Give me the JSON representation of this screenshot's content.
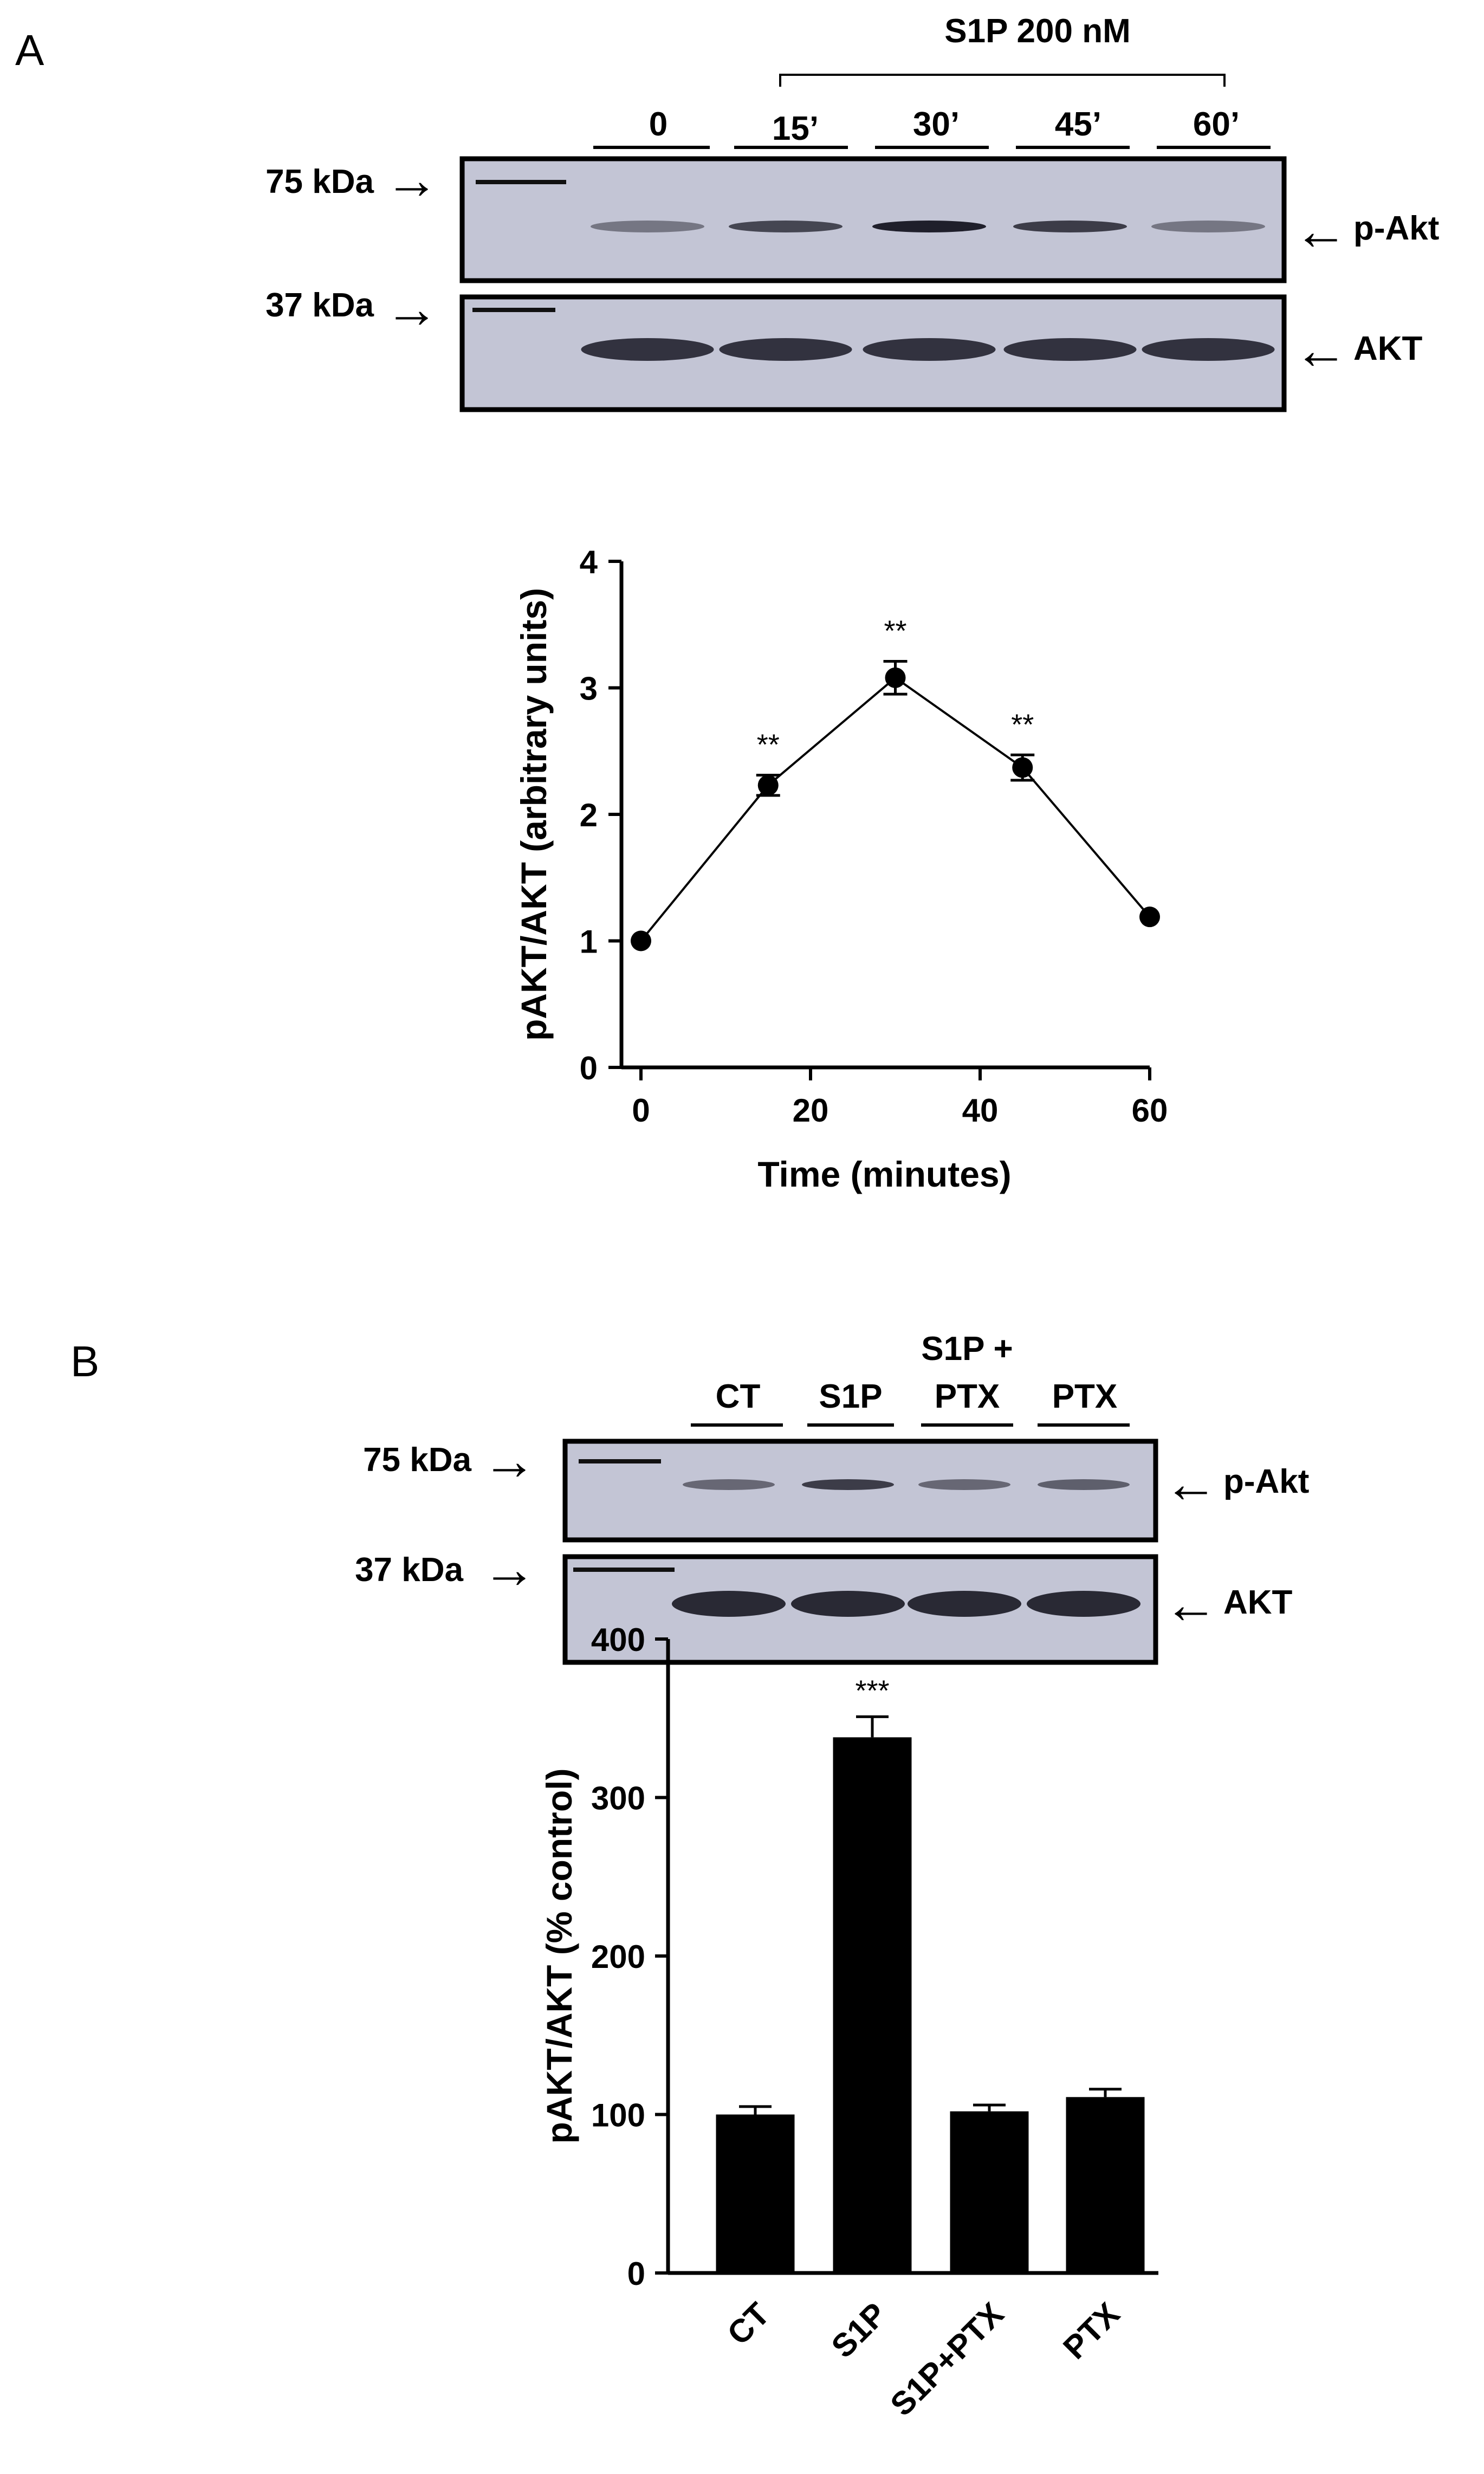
{
  "panel_a": {
    "label": "A",
    "treatment_label": "S1P 200 nM",
    "lanes": [
      "0",
      "15’",
      "30’",
      "45’",
      "60’"
    ],
    "band_intensity_pakt": [
      0.45,
      0.75,
      0.95,
      0.8,
      0.45
    ],
    "band_intensity_akt": [
      0.85,
      0.85,
      0.85,
      0.85,
      0.85
    ],
    "marker_upper": "75 kDa",
    "marker_lower": "37 kDa",
    "blot_upper_label": "p-Akt",
    "blot_lower_label": "AKT"
  },
  "panel_b": {
    "label": "B",
    "lanes": [
      "CT",
      "S1P",
      "S1P +",
      "PTX",
      "PTX"
    ],
    "band_intensity_pakt": [
      0.55,
      0.8,
      0.55,
      0.6
    ],
    "band_intensity_akt": [
      0.9,
      0.9,
      0.9,
      0.9
    ],
    "marker_upper": "75 kDa",
    "marker_lower": "37 kDa",
    "blot_upper_label": "p-Akt",
    "blot_lower_label": "AKT"
  },
  "arrow_glyph": "→",
  "arrow_glyph_left": "←",
  "chart_data": [
    {
      "type": "line",
      "title": "",
      "xlabel": "Time (minutes)",
      "ylabel": "pAKT/AKT (arbitrary units)",
      "x": [
        0,
        15,
        30,
        45,
        60
      ],
      "y": [
        1.0,
        2.23,
        3.08,
        2.37,
        1.19
      ],
      "error": [
        0.02,
        0.08,
        0.13,
        0.1,
        0.03
      ],
      "annotations": [
        "",
        "**",
        "**",
        "**",
        ""
      ],
      "xlim": [
        0,
        60
      ],
      "ylim": [
        0,
        4
      ],
      "xticks": [
        0,
        20,
        40,
        60
      ],
      "yticks": [
        0,
        1,
        2,
        3,
        4
      ]
    },
    {
      "type": "bar",
      "title": "",
      "xlabel": "",
      "ylabel": "pAKT/AKT (% control)",
      "categories": [
        "CT",
        "S1P",
        "S1P+PTX",
        "PTX"
      ],
      "values": [
        100,
        338,
        102,
        111
      ],
      "error": [
        5,
        13,
        4,
        5
      ],
      "annotations": [
        "",
        "***",
        "",
        ""
      ],
      "ylim": [
        0,
        400
      ],
      "yticks": [
        0,
        100,
        200,
        300,
        400
      ]
    }
  ]
}
